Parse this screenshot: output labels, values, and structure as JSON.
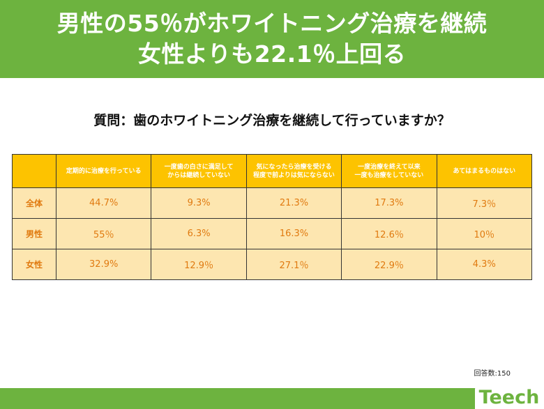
{
  "banner": {
    "line1": "男性の55％がホワイトニング治療を継続",
    "line2": "女性よりも22.1％上回る"
  },
  "question": "質問：歯のホワイトニング治療を継続して行っていますか？",
  "colors": {
    "banner_green": "#6db33f",
    "header_yellow": "#fdc300",
    "cell_cream": "#fde6b0",
    "value_orange": "#e07a10"
  },
  "chart_data": {
    "type": "table",
    "columns": [
      "定期的に治療を行っている",
      "一度歯の白さに満足してからは継続していない",
      "気になったら治療を受ける程度で前よりは気にならない",
      "一度治療を終えて以来一度も治療をしていない",
      "あてはまるものはない"
    ],
    "header_lines": [
      [
        "定期的に治療を行っている"
      ],
      [
        "一度歯の白さに満足して",
        "からは継続していない"
      ],
      [
        "気になったら治療を受ける",
        "程度で前よりは気にならない"
      ],
      [
        "一度治療を終えて以来",
        "一度も治療をしていない"
      ],
      [
        "あてはまるものはない"
      ]
    ],
    "rows": [
      {
        "label": "全体",
        "values": [
          "44.7%",
          "9.3%",
          "21.3%",
          "17.3%",
          "7.3％"
        ]
      },
      {
        "label": "男性",
        "values": [
          "55％",
          "6.3%",
          "16.3%",
          "12.6％",
          "10％"
        ]
      },
      {
        "label": "女性",
        "values": [
          "32.9%",
          "12.9％",
          "27.1％",
          "22.9％",
          "4.3%"
        ]
      }
    ]
  },
  "respondents": "回答数:150",
  "logo": {
    "text": "Teech"
  }
}
